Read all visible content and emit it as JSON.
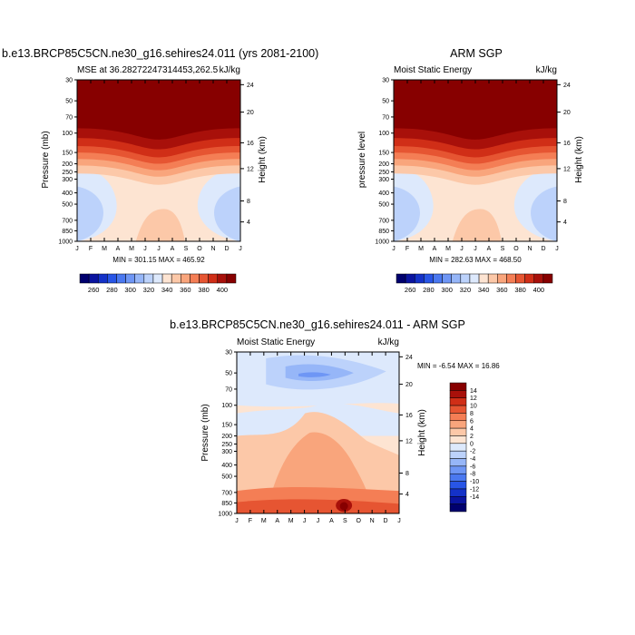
{
  "chart_data": [
    {
      "type": "heatmap",
      "id": "model",
      "title": "b.e13.BRCP85C5CN.ne30_g16.sehires24.011 (yrs 2081-2100)",
      "left_subtitle": "MSE at 36.28272247314453,262.5",
      "right_subtitle": "kJ/kg",
      "xlabel": "",
      "ylabel": "Pressure (mb)",
      "ylabel_right": "Height (km)",
      "x_ticks": [
        "J",
        "F",
        "M",
        "A",
        "M",
        "J",
        "J",
        "A",
        "S",
        "O",
        "N",
        "D",
        "J"
      ],
      "y_ticks": [
        "30",
        "50",
        "70",
        "100",
        "150",
        "200",
        "250",
        "300",
        "400",
        "500",
        "700",
        "850",
        "1000"
      ],
      "y_ticks_right": [
        "24",
        "20",
        "16",
        "12",
        "8",
        "4"
      ],
      "stats": "MIN = 301.15 MAX = 465.92",
      "min": 301.15,
      "max": 465.92,
      "colorbar_labels": [
        "260",
        "280",
        "300",
        "320",
        "340",
        "360",
        "380",
        "400"
      ]
    },
    {
      "type": "heatmap",
      "id": "obs",
      "title": "ARM SGP",
      "left_subtitle": "Moist Static Energy",
      "right_subtitle": "kJ/kg",
      "xlabel": "",
      "ylabel": "pressure level",
      "ylabel_right": "Height (km)",
      "x_ticks": [
        "J",
        "F",
        "M",
        "A",
        "M",
        "J",
        "J",
        "A",
        "S",
        "O",
        "N",
        "D",
        "J"
      ],
      "y_ticks": [
        "30",
        "50",
        "70",
        "100",
        "150",
        "200",
        "250",
        "300",
        "400",
        "500",
        "700",
        "850",
        "1000"
      ],
      "y_ticks_right": [
        "24",
        "20",
        "16",
        "12",
        "8",
        "4"
      ],
      "stats": "MIN = 282.63 MAX = 468.50",
      "min": 282.63,
      "max": 468.5,
      "colorbar_labels": [
        "260",
        "280",
        "300",
        "320",
        "340",
        "360",
        "380",
        "400"
      ]
    },
    {
      "type": "heatmap",
      "id": "diff",
      "title": "b.e13.BRCP85C5CN.ne30_g16.sehires24.011 - ARM SGP",
      "left_subtitle": "Moist Static Energy",
      "right_subtitle": "kJ/kg",
      "xlabel": "",
      "ylabel": "Pressure (mb)",
      "ylabel_right": "Height (km)",
      "x_ticks": [
        "J",
        "F",
        "M",
        "A",
        "M",
        "J",
        "J",
        "A",
        "S",
        "O",
        "N",
        "D",
        "J"
      ],
      "y_ticks": [
        "30",
        "50",
        "70",
        "100",
        "150",
        "200",
        "250",
        "300",
        "400",
        "500",
        "700",
        "850",
        "1000"
      ],
      "y_ticks_right": [
        "24",
        "20",
        "16",
        "12",
        "8",
        "4"
      ],
      "stats": "MIN =  -6.54 MAX =  16.86",
      "min": -6.54,
      "max": 16.86,
      "colorbar_labels": [
        "14",
        "12",
        "10",
        "8",
        "6",
        "4",
        "2",
        "0",
        "-2",
        "-4",
        "-6",
        "-8",
        "-10",
        "-12",
        "-14"
      ]
    }
  ],
  "colors": {
    "abs_scale": [
      "#00006e",
      "#0a14a0",
      "#1432c8",
      "#2855e6",
      "#4a78f0",
      "#6e96f5",
      "#96b6f8",
      "#bcd2fb",
      "#dde9fc",
      "#fde4d2",
      "#fcc8a8",
      "#f9a57c",
      "#f47e55",
      "#e65532",
      "#d02e17",
      "#a8100a",
      "#870000"
    ],
    "diff_scale": [
      "#00006e",
      "#0a14a0",
      "#1432c8",
      "#2855e6",
      "#4a78f0",
      "#6e96f5",
      "#96b6f8",
      "#bcd2fb",
      "#dde9fc",
      "#fde4d2",
      "#fcc8a8",
      "#f9a57c",
      "#f47e55",
      "#e65532",
      "#d02e17",
      "#a8100a",
      "#870000"
    ]
  }
}
